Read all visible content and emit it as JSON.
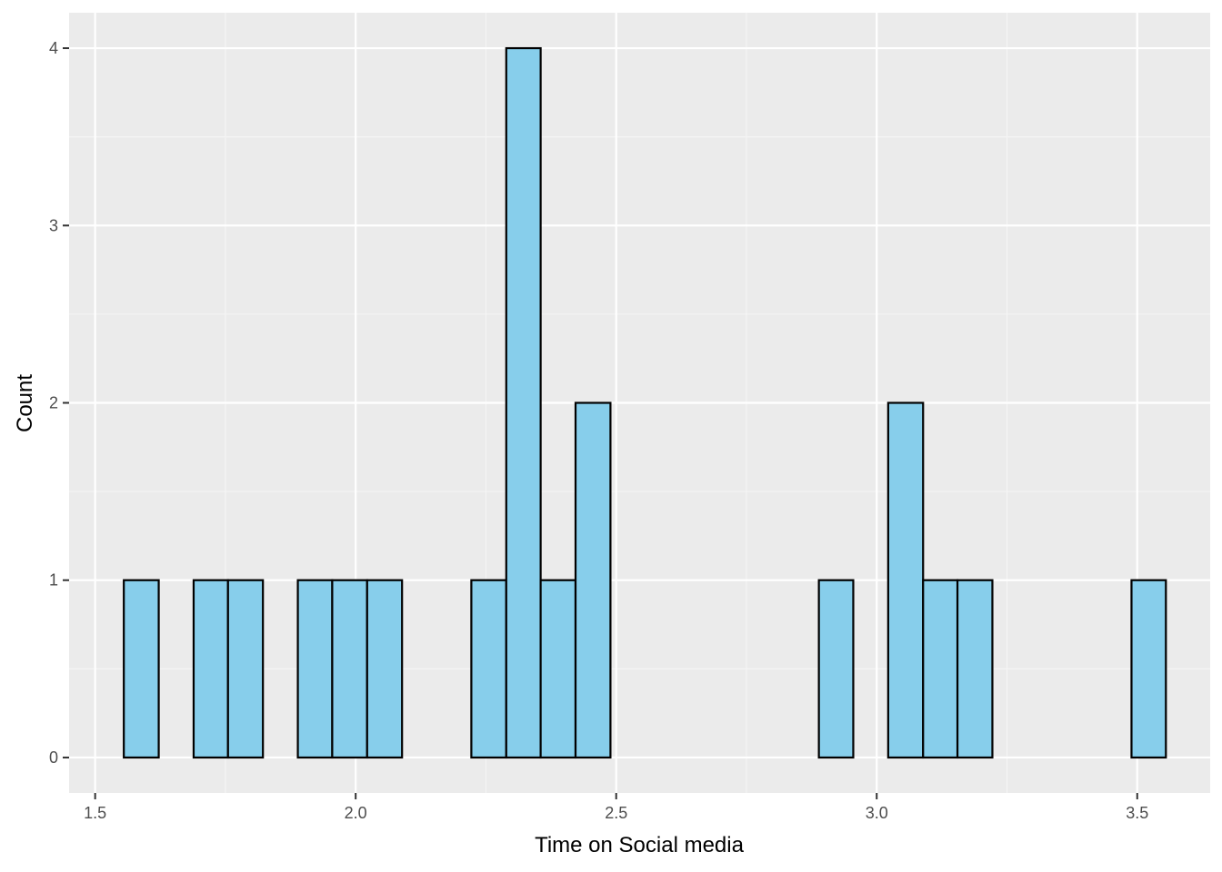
{
  "chart_data": {
    "type": "bar",
    "subtype": "histogram",
    "xlabel": "Time on Social media",
    "ylabel": "Count",
    "xlim": [
      1.45,
      3.64
    ],
    "ylim": [
      -0.2,
      4.2
    ],
    "x_ticks": [
      1.5,
      2.0,
      2.5,
      3.0,
      3.5
    ],
    "x_tick_labels": [
      "1.5",
      "2.0",
      "2.5",
      "3.0",
      "3.5"
    ],
    "y_ticks": [
      0,
      1,
      2,
      3,
      4
    ],
    "y_tick_labels": [
      "0",
      "1",
      "2",
      "3",
      "4"
    ],
    "bin_width": 0.0666,
    "bins": [
      {
        "x0": 1.555,
        "x1": 1.622,
        "count": 1
      },
      {
        "x0": 1.622,
        "x1": 1.689,
        "count": 0
      },
      {
        "x0": 1.689,
        "x1": 1.755,
        "count": 1
      },
      {
        "x0": 1.755,
        "x1": 1.822,
        "count": 1
      },
      {
        "x0": 1.822,
        "x1": 1.889,
        "count": 0
      },
      {
        "x0": 1.889,
        "x1": 1.955,
        "count": 1
      },
      {
        "x0": 1.955,
        "x1": 2.022,
        "count": 1
      },
      {
        "x0": 2.022,
        "x1": 2.089,
        "count": 1
      },
      {
        "x0": 2.089,
        "x1": 2.155,
        "count": 0
      },
      {
        "x0": 2.155,
        "x1": 2.222,
        "count": 0
      },
      {
        "x0": 2.222,
        "x1": 2.289,
        "count": 1
      },
      {
        "x0": 2.289,
        "x1": 2.355,
        "count": 4
      },
      {
        "x0": 2.355,
        "x1": 2.422,
        "count": 1
      },
      {
        "x0": 2.422,
        "x1": 2.489,
        "count": 2
      },
      {
        "x0": 2.489,
        "x1": 2.555,
        "count": 0
      },
      {
        "x0": 2.555,
        "x1": 2.622,
        "count": 0
      },
      {
        "x0": 2.622,
        "x1": 2.689,
        "count": 0
      },
      {
        "x0": 2.689,
        "x1": 2.755,
        "count": 0
      },
      {
        "x0": 2.755,
        "x1": 2.822,
        "count": 0
      },
      {
        "x0": 2.822,
        "x1": 2.889,
        "count": 0
      },
      {
        "x0": 2.889,
        "x1": 2.955,
        "count": 1
      },
      {
        "x0": 2.955,
        "x1": 3.022,
        "count": 0
      },
      {
        "x0": 3.022,
        "x1": 3.089,
        "count": 2
      },
      {
        "x0": 3.089,
        "x1": 3.155,
        "count": 1
      },
      {
        "x0": 3.155,
        "x1": 3.222,
        "count": 1
      },
      {
        "x0": 3.222,
        "x1": 3.289,
        "count": 0
      },
      {
        "x0": 3.289,
        "x1": 3.355,
        "count": 0
      },
      {
        "x0": 3.355,
        "x1": 3.422,
        "count": 0
      },
      {
        "x0": 3.422,
        "x1": 3.489,
        "count": 0
      },
      {
        "x0": 3.489,
        "x1": 3.555,
        "count": 1
      }
    ],
    "grid": true,
    "colors": {
      "panel_background": "#ebebeb",
      "grid_major": "#ffffff",
      "grid_minor": "#f5f5f5",
      "bar_fill": "#87ceeb",
      "bar_outline": "#000000"
    }
  }
}
